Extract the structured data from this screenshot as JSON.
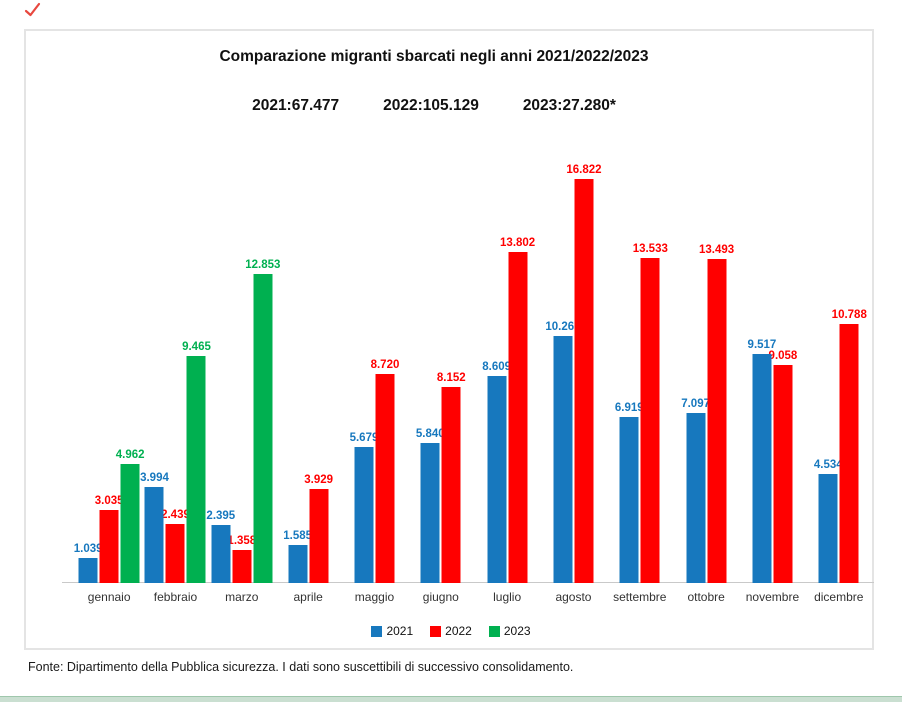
{
  "header": {
    "title": "Comparazione migranti sbarcati negli anni 2021/2022/2023",
    "totals": [
      "2021:67.477",
      "2022:105.129",
      "2023:27.280*"
    ]
  },
  "legend": [
    {
      "label": "2021",
      "color": "#1778be"
    },
    {
      "label": "2022",
      "color": "#ff0000"
    },
    {
      "label": "2023",
      "color": "#00b050"
    }
  ],
  "footer": {
    "source_note": "Fonte: Dipartimento della Pubblica sicurezza. I dati sono suscettibili di successivo consolidamento."
  },
  "icons": {
    "red_mark": "check-scribble"
  },
  "colors": {
    "blue": "#1778be",
    "red": "#ff0000",
    "green": "#00b050",
    "frame_border": "#e4e4e4",
    "axis": "#c9c9c9",
    "bottom_band": "#cadfd1",
    "bottom_band_edge": "#9fc7ac",
    "red_mark": "#e8483f"
  },
  "chart_data": {
    "type": "bar",
    "title": "Comparazione migranti sbarcati negli anni 2021/2022/2023",
    "categories": [
      "gennaio",
      "febbraio",
      "marzo",
      "aprile",
      "maggio",
      "giugno",
      "luglio",
      "agosto",
      "settembre",
      "ottobre",
      "novembre",
      "dicembre"
    ],
    "series": [
      {
        "name": "2021",
        "color": "#1778be",
        "values": [
          1039,
          3994,
          2395,
          1585,
          5679,
          5840,
          8609,
          10269,
          6919,
          7097,
          9517,
          4534
        ],
        "labels": [
          "1.039",
          "3.994",
          "2.395",
          "1.585",
          "5.679",
          "5.840",
          "8.609",
          "10.269",
          "6.919",
          "7.097",
          "9.517",
          "4.534"
        ],
        "annual_total": "67.477"
      },
      {
        "name": "2022",
        "color": "#ff0000",
        "values": [
          3035,
          2439,
          1358,
          3929,
          8720,
          8152,
          13802,
          16822,
          13533,
          13493,
          9058,
          10788
        ],
        "labels": [
          "3.035",
          "2.439",
          "1.358",
          "3.929",
          "8.720",
          "8.152",
          "13.802",
          "16.822",
          "13.533",
          "13.493",
          "9.058",
          "10.788"
        ],
        "annual_total": "105.129"
      },
      {
        "name": "2023",
        "color": "#00b050",
        "values": [
          4962,
          9465,
          12853,
          null,
          null,
          null,
          null,
          null,
          null,
          null,
          null,
          null
        ],
        "labels": [
          "4.962",
          "9.465",
          "12.853",
          null,
          null,
          null,
          null,
          null,
          null,
          null,
          null,
          null
        ],
        "annual_total": "27.280*"
      }
    ],
    "ylim": [
      0,
      16822
    ],
    "grid": false,
    "legend_position": "bottom",
    "data_labels": true,
    "xlabel": "",
    "ylabel": ""
  }
}
